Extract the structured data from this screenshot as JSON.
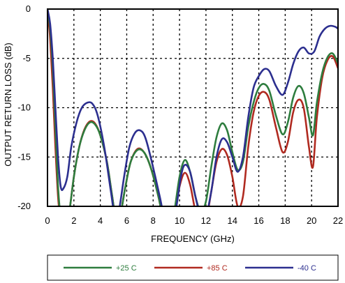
{
  "chart_data": {
    "type": "line",
    "title": "",
    "xlabel": "FREQUENCY (GHz)",
    "ylabel": "OUTPUT RETURN LOSS (dB)",
    "xlim": [
      0,
      22
    ],
    "ylim": [
      -20,
      0
    ],
    "x_ticks": [
      "0",
      "2",
      "4",
      "6",
      "8",
      "10",
      "12",
      "14",
      "16",
      "18",
      "20",
      "22"
    ],
    "y_ticks": [
      "0",
      "-5",
      "-10",
      "-15",
      "-20"
    ],
    "grid": "dashed",
    "legend_position": "bottom",
    "series": [
      {
        "name": "+25 C",
        "color": "#2e7d3e",
        "points": [
          [
            0.0,
            0
          ],
          [
            0.2,
            -2
          ],
          [
            0.4,
            -6
          ],
          [
            0.6,
            -12
          ],
          [
            0.8,
            -18
          ],
          [
            1.0,
            -21
          ],
          [
            1.3,
            -22
          ],
          [
            1.6,
            -21
          ],
          [
            2.0,
            -17
          ],
          [
            2.4,
            -14
          ],
          [
            2.8,
            -12.3
          ],
          [
            3.2,
            -11.5
          ],
          [
            3.6,
            -11.7
          ],
          [
            4.0,
            -12.8
          ],
          [
            4.5,
            -15.5
          ],
          [
            4.9,
            -19
          ],
          [
            5.2,
            -21.5
          ],
          [
            5.5,
            -21
          ],
          [
            5.9,
            -18
          ],
          [
            6.3,
            -15.5
          ],
          [
            6.8,
            -14.3
          ],
          [
            7.3,
            -14.5
          ],
          [
            7.8,
            -16
          ],
          [
            8.4,
            -19
          ],
          [
            8.8,
            -21.5
          ],
          [
            9.2,
            -22
          ],
          [
            9.6,
            -20.5
          ],
          [
            10.0,
            -17
          ],
          [
            10.4,
            -15.3
          ],
          [
            10.8,
            -16.5
          ],
          [
            11.2,
            -19
          ],
          [
            11.6,
            -20.5
          ],
          [
            12.0,
            -19.5
          ],
          [
            12.4,
            -16
          ],
          [
            12.8,
            -13
          ],
          [
            13.2,
            -11.6
          ],
          [
            13.6,
            -12.3
          ],
          [
            14.0,
            -14.5
          ],
          [
            14.4,
            -16.3
          ],
          [
            14.8,
            -15.5
          ],
          [
            15.2,
            -12
          ],
          [
            15.6,
            -9.5
          ],
          [
            16.0,
            -8.0
          ],
          [
            16.4,
            -7.6
          ],
          [
            16.8,
            -8.3
          ],
          [
            17.3,
            -10.8
          ],
          [
            17.8,
            -12.7
          ],
          [
            18.2,
            -11.5
          ],
          [
            18.6,
            -9
          ],
          [
            19.0,
            -7.8
          ],
          [
            19.4,
            -8.5
          ],
          [
            19.8,
            -11
          ],
          [
            20.1,
            -12.8
          ],
          [
            20.4,
            -9.5
          ],
          [
            20.8,
            -6.5
          ],
          [
            21.2,
            -4.9
          ],
          [
            21.6,
            -4.5
          ],
          [
            22.0,
            -5.5
          ]
        ]
      },
      {
        "name": "+85 C",
        "color": "#b02a20",
        "points": [
          [
            0.0,
            0
          ],
          [
            0.2,
            -3
          ],
          [
            0.4,
            -8
          ],
          [
            0.6,
            -14
          ],
          [
            0.8,
            -19
          ],
          [
            1.0,
            -21.5
          ],
          [
            1.3,
            -22
          ],
          [
            1.6,
            -21
          ],
          [
            2.0,
            -17
          ],
          [
            2.4,
            -14
          ],
          [
            2.8,
            -12.2
          ],
          [
            3.2,
            -11.4
          ],
          [
            3.6,
            -11.6
          ],
          [
            4.0,
            -12.8
          ],
          [
            4.5,
            -15.5
          ],
          [
            4.9,
            -19
          ],
          [
            5.2,
            -21.5
          ],
          [
            5.5,
            -21
          ],
          [
            5.9,
            -18
          ],
          [
            6.3,
            -15.5
          ],
          [
            6.8,
            -14.2
          ],
          [
            7.3,
            -14.5
          ],
          [
            7.8,
            -16
          ],
          [
            8.4,
            -19
          ],
          [
            8.8,
            -21.5
          ],
          [
            9.2,
            -22
          ],
          [
            9.6,
            -21
          ],
          [
            10.0,
            -18
          ],
          [
            10.4,
            -16.6
          ],
          [
            10.8,
            -17.8
          ],
          [
            11.2,
            -20.5
          ],
          [
            11.6,
            -22
          ],
          [
            12.0,
            -21.5
          ],
          [
            12.4,
            -18.5
          ],
          [
            12.8,
            -15.5
          ],
          [
            13.2,
            -14.2
          ],
          [
            13.6,
            -14.8
          ],
          [
            14.0,
            -17
          ],
          [
            14.4,
            -20
          ],
          [
            14.8,
            -19
          ],
          [
            15.2,
            -14
          ],
          [
            15.6,
            -10.5
          ],
          [
            16.0,
            -8.8
          ],
          [
            16.4,
            -8.4
          ],
          [
            16.8,
            -9.2
          ],
          [
            17.3,
            -12
          ],
          [
            17.8,
            -14.5
          ],
          [
            18.2,
            -13.5
          ],
          [
            18.6,
            -10.5
          ],
          [
            19.0,
            -9.2
          ],
          [
            19.4,
            -10
          ],
          [
            19.8,
            -14
          ],
          [
            20.1,
            -16
          ],
          [
            20.4,
            -11
          ],
          [
            20.8,
            -7
          ],
          [
            21.2,
            -5.2
          ],
          [
            21.6,
            -4.8
          ],
          [
            22.0,
            -6.0
          ]
        ]
      },
      {
        "name": "-40 C",
        "color": "#2c2f8f",
        "points": [
          [
            0.0,
            0
          ],
          [
            0.2,
            -1.5
          ],
          [
            0.4,
            -5
          ],
          [
            0.6,
            -10
          ],
          [
            0.8,
            -15
          ],
          [
            1.0,
            -18
          ],
          [
            1.2,
            -18.2
          ],
          [
            1.5,
            -17
          ],
          [
            1.8,
            -14
          ],
          [
            2.2,
            -11.5
          ],
          [
            2.6,
            -10
          ],
          [
            3.0,
            -9.5
          ],
          [
            3.4,
            -9.6
          ],
          [
            3.8,
            -10.8
          ],
          [
            4.3,
            -14
          ],
          [
            4.8,
            -18.5
          ],
          [
            5.1,
            -21
          ],
          [
            5.4,
            -20.5
          ],
          [
            5.8,
            -17
          ],
          [
            6.2,
            -14
          ],
          [
            6.6,
            -12.6
          ],
          [
            7.0,
            -12.3
          ],
          [
            7.4,
            -13
          ],
          [
            7.9,
            -15.5
          ],
          [
            8.5,
            -19
          ],
          [
            8.9,
            -21.5
          ],
          [
            9.3,
            -22
          ],
          [
            9.7,
            -20.5
          ],
          [
            10.1,
            -17
          ],
          [
            10.4,
            -15.8
          ],
          [
            10.8,
            -16.5
          ],
          [
            11.2,
            -19
          ],
          [
            11.6,
            -21
          ],
          [
            12.0,
            -21
          ],
          [
            12.4,
            -18.5
          ],
          [
            12.8,
            -15
          ],
          [
            13.2,
            -13.2
          ],
          [
            13.6,
            -13.5
          ],
          [
            14.0,
            -15
          ],
          [
            14.4,
            -16.5
          ],
          [
            14.8,
            -15
          ],
          [
            15.2,
            -11
          ],
          [
            15.6,
            -8
          ],
          [
            16.0,
            -6.8
          ],
          [
            16.4,
            -6.1
          ],
          [
            16.8,
            -6.3
          ],
          [
            17.3,
            -7.8
          ],
          [
            17.8,
            -8.7
          ],
          [
            18.2,
            -7.5
          ],
          [
            18.6,
            -5.6
          ],
          [
            19.0,
            -4.3
          ],
          [
            19.4,
            -3.9
          ],
          [
            19.8,
            -4.5
          ],
          [
            20.2,
            -4.3
          ],
          [
            20.6,
            -2.8
          ],
          [
            21.0,
            -2.0
          ],
          [
            21.4,
            -1.7
          ],
          [
            21.8,
            -1.8
          ],
          [
            22.0,
            -2.0
          ]
        ]
      }
    ]
  }
}
